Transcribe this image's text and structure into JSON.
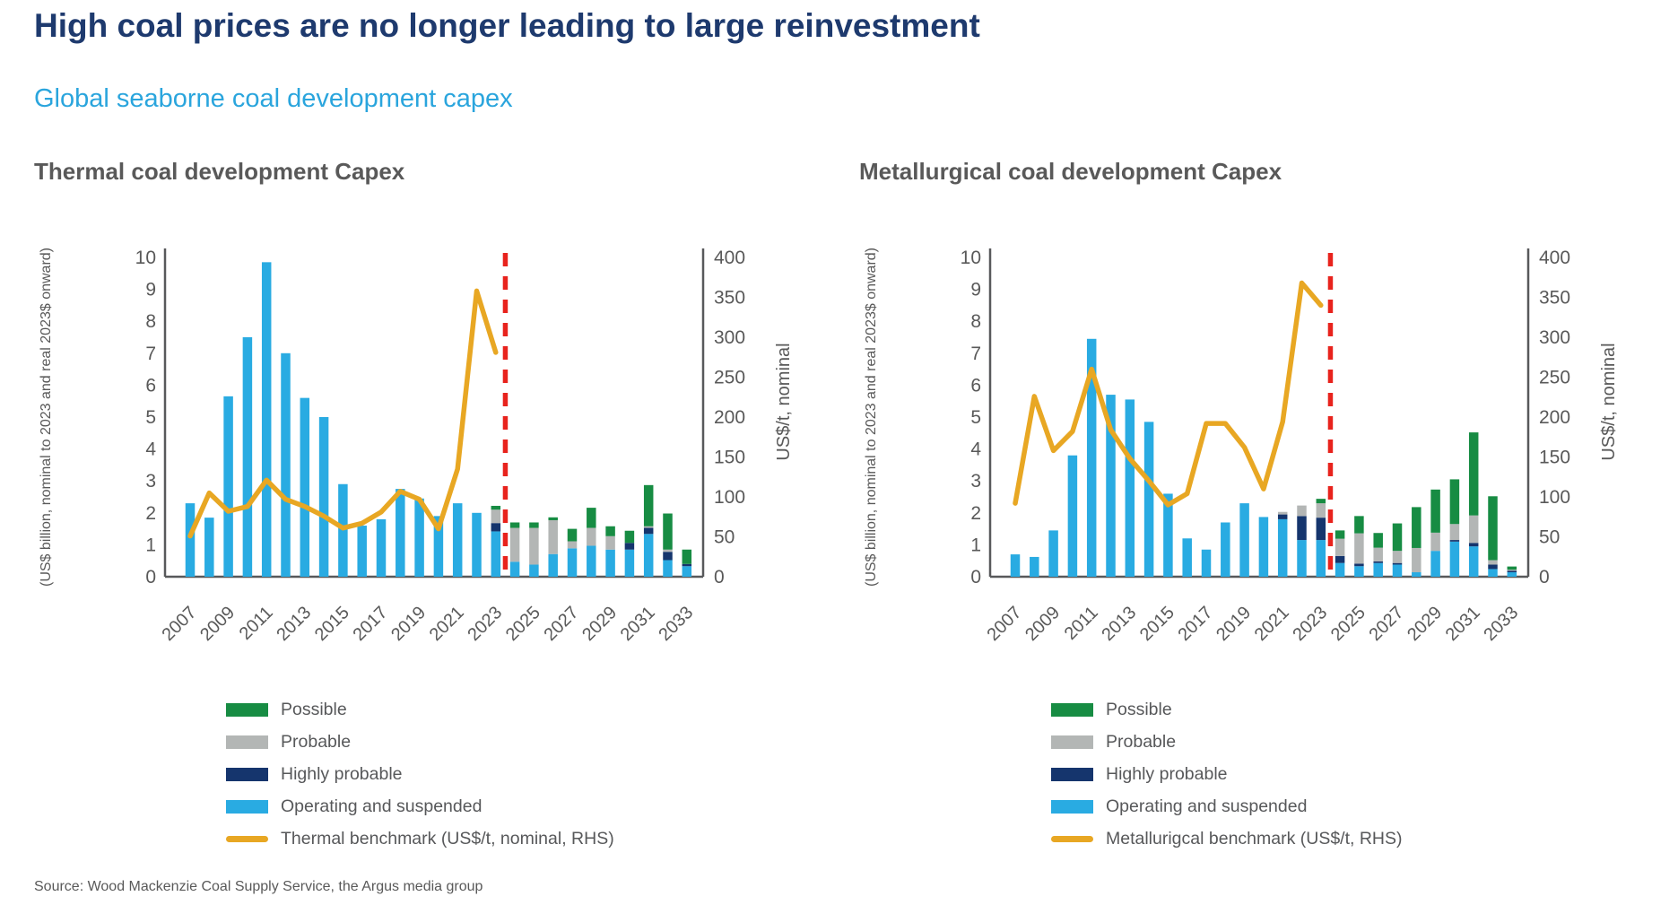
{
  "page": {
    "title": "High coal prices are no longer leading to large reinvestment",
    "subtitle": "Global seaborne coal development capex",
    "source": "Source: Wood Mackenzie Coal Supply Service, the Argus media group"
  },
  "colors": {
    "operating": "#29abe2",
    "highly_probable": "#15356d",
    "probable": "#b3b6b5",
    "possible": "#178c43",
    "benchmark": "#e8a723",
    "forecast_divider": "#e8231d",
    "title": "#1e3a6e",
    "subtitle": "#2aa5dd",
    "heading": "#595959",
    "axis": "#58595b"
  },
  "charts": [
    {
      "title": "Thermal coal development Capex",
      "y_left_label": "(US$ billion, nominal to 2023 and real 2023$ onward)",
      "y_right_label": "US$/t, nominal",
      "legend": [
        {
          "label": "Possible",
          "color_key": "possible",
          "kind": "bar"
        },
        {
          "label": "Probable",
          "color_key": "probable",
          "kind": "bar"
        },
        {
          "label": "Highly probable",
          "color_key": "highly_probable",
          "kind": "bar"
        },
        {
          "label": "Operating and suspended",
          "color_key": "operating",
          "kind": "bar"
        },
        {
          "label": "Thermal benchmark (US$/t, nominal, RHS)",
          "color_key": "benchmark",
          "kind": "line"
        }
      ],
      "chart_data": {
        "type": "bar",
        "years": [
          2007,
          2008,
          2009,
          2010,
          2011,
          2012,
          2013,
          2014,
          2015,
          2016,
          2017,
          2018,
          2019,
          2020,
          2021,
          2022,
          2023,
          2024,
          2025,
          2026,
          2027,
          2028,
          2029,
          2030,
          2031,
          2032,
          2033
        ],
        "x_tick_labels": [
          "2007",
          "2009",
          "2011",
          "2013",
          "2015",
          "2017",
          "2019",
          "2021",
          "2023",
          "2025",
          "2027",
          "2029",
          "2031",
          "2033"
        ],
        "ylim_left": [
          0,
          10
        ],
        "ylim_right": [
          0,
          400
        ],
        "y_left_ticks": [
          0,
          1,
          2,
          3,
          4,
          5,
          6,
          7,
          8,
          9,
          10
        ],
        "y_right_ticks": [
          0,
          50,
          100,
          150,
          200,
          250,
          300,
          350,
          400
        ],
        "forecast_divider_after_year": 2023,
        "series": [
          {
            "name": "Operating and suspended",
            "color_key": "operating",
            "values": [
              2.3,
              1.85,
              5.65,
              7.5,
              9.85,
              7.0,
              5.6,
              5.0,
              2.9,
              1.6,
              1.8,
              2.75,
              2.45,
              1.9,
              2.3,
              2.0,
              1.42,
              0.47,
              0.38,
              0.71,
              0.89,
              0.97,
              0.85,
              0.85,
              1.34,
              0.52,
              0.33
            ]
          },
          {
            "name": "Highly probable",
            "color_key": "highly_probable",
            "values": [
              0,
              0,
              0,
              0,
              0,
              0,
              0,
              0,
              0,
              0,
              0,
              0,
              0,
              0,
              0,
              0,
              0.26,
              0,
              0,
              0,
              0,
              0,
              0,
              0.21,
              0.19,
              0.26,
              0.07
            ]
          },
          {
            "name": "Probable",
            "color_key": "probable",
            "values": [
              0,
              0,
              0,
              0,
              0,
              0,
              0,
              0,
              0,
              0,
              0,
              0,
              0,
              0,
              0,
              0,
              0.42,
              1.06,
              1.15,
              1.06,
              0.22,
              0.56,
              0.42,
              0,
              0.05,
              0.07,
              0
            ]
          },
          {
            "name": "Possible",
            "color_key": "possible",
            "values": [
              0,
              0,
              0,
              0,
              0,
              0,
              0,
              0,
              0,
              0,
              0,
              0,
              0,
              0,
              0,
              0,
              0.12,
              0.17,
              0.17,
              0.09,
              0.39,
              0.63,
              0.31,
              0.38,
              1.29,
              1.13,
              0.45
            ]
          }
        ],
        "benchmark": {
          "name": "Thermal benchmark (US$/t, nominal, RHS)",
          "axis": "right",
          "years": [
            2007,
            2008,
            2009,
            2010,
            2011,
            2012,
            2013,
            2014,
            2015,
            2016,
            2017,
            2018,
            2019,
            2020,
            2021,
            2022,
            2023
          ],
          "values": [
            51,
            105,
            82,
            88,
            121,
            97,
            88,
            76,
            61,
            67,
            81,
            107,
            97,
            60,
            135,
            358,
            281
          ]
        }
      }
    },
    {
      "title": "Metallurgical coal development Capex",
      "y_left_label": "(US$ billion, nominal to 2023 and real 2023$ onward)",
      "y_right_label": "US$/t, nominal",
      "legend": [
        {
          "label": "Possible",
          "color_key": "possible",
          "kind": "bar"
        },
        {
          "label": "Probable",
          "color_key": "probable",
          "kind": "bar"
        },
        {
          "label": "Highly probable",
          "color_key": "highly_probable",
          "kind": "bar"
        },
        {
          "label": "Operating and suspended",
          "color_key": "operating",
          "kind": "bar"
        },
        {
          "label": "Metallurigcal benchmark (US$/t, RHS)",
          "color_key": "benchmark",
          "kind": "line"
        }
      ],
      "chart_data": {
        "type": "bar",
        "years": [
          2007,
          2008,
          2009,
          2010,
          2011,
          2012,
          2013,
          2014,
          2015,
          2016,
          2017,
          2018,
          2019,
          2020,
          2021,
          2022,
          2023,
          2024,
          2025,
          2026,
          2027,
          2028,
          2029,
          2030,
          2031,
          2032,
          2033
        ],
        "x_tick_labels": [
          "2007",
          "2009",
          "2011",
          "2013",
          "2015",
          "2017",
          "2019",
          "2021",
          "2023",
          "2025",
          "2027",
          "2029",
          "2031",
          "2033"
        ],
        "ylim_left": [
          0,
          10
        ],
        "ylim_right": [
          0,
          400
        ],
        "y_left_ticks": [
          0,
          1,
          2,
          3,
          4,
          5,
          6,
          7,
          8,
          9,
          10
        ],
        "y_right_ticks": [
          0,
          50,
          100,
          150,
          200,
          250,
          300,
          350,
          400
        ],
        "forecast_divider_after_year": 2023,
        "series": [
          {
            "name": "Operating and suspended",
            "color_key": "operating",
            "values": [
              0.7,
              0.62,
              1.45,
              3.8,
              7.45,
              5.7,
              5.55,
              4.85,
              2.6,
              1.2,
              0.85,
              1.7,
              2.3,
              1.87,
              1.8,
              1.15,
              1.15,
              0.43,
              0.33,
              0.43,
              0.38,
              0.14,
              0.81,
              1.1,
              0.95,
              0.24,
              0.14
            ]
          },
          {
            "name": "Highly probable",
            "color_key": "highly_probable",
            "values": [
              0,
              0,
              0,
              0,
              0,
              0,
              0,
              0,
              0,
              0,
              0,
              0,
              0,
              0,
              0.15,
              0.75,
              0.7,
              0.22,
              0.08,
              0.05,
              0.05,
              0,
              0,
              0.05,
              0.11,
              0.14,
              0.05
            ]
          },
          {
            "name": "Probable",
            "color_key": "probable",
            "values": [
              0,
              0,
              0,
              0,
              0,
              0,
              0,
              0,
              0,
              0,
              0,
              0,
              0,
              0,
              0.08,
              0.33,
              0.45,
              0.54,
              0.95,
              0.43,
              0.38,
              0.76,
              0.57,
              0.5,
              0.86,
              0.14,
              0.03
            ]
          },
          {
            "name": "Possible",
            "color_key": "possible",
            "values": [
              0,
              0,
              0,
              0,
              0,
              0,
              0,
              0,
              0,
              0,
              0,
              0,
              0,
              0,
              0,
              0,
              0.14,
              0.26,
              0.54,
              0.46,
              0.86,
              1.28,
              1.35,
              1.4,
              2.6,
              2.0,
              0.1
            ]
          }
        ],
        "benchmark": {
          "name": "Metallurigcal benchmark (US$/t, RHS)",
          "axis": "right",
          "years": [
            2007,
            2008,
            2009,
            2010,
            2011,
            2012,
            2013,
            2014,
            2015,
            2016,
            2017,
            2018,
            2019,
            2020,
            2021,
            2022,
            2023
          ],
          "values": [
            92,
            226,
            158,
            182,
            260,
            184,
            148,
            120,
            90,
            104,
            192,
            192,
            162,
            110,
            194,
            368,
            340
          ]
        }
      }
    }
  ]
}
